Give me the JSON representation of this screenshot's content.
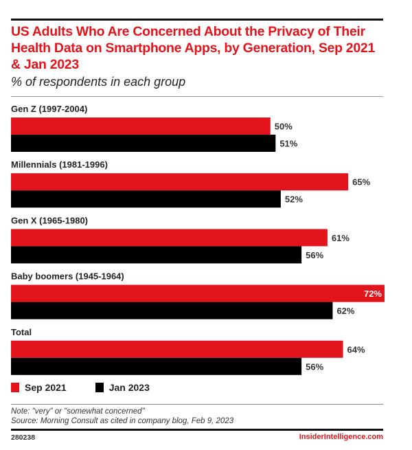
{
  "header": {
    "title": "US Adults Who Are Concerned About the Privacy of Their Health Data on Smartphone Apps, by Generation, Sep 2021 & Jan 2023",
    "subtitle": "% of respondents in each group"
  },
  "colors": {
    "sep_2021": "#e3141b",
    "jan_2023": "#000000",
    "title": "#e3141b"
  },
  "chart_data": {
    "type": "bar",
    "orientation": "horizontal",
    "title": "US Adults Who Are Concerned About the Privacy of Their Health Data on Smartphone Apps, by Generation, Sep 2021 & Jan 2023",
    "subtitle": "% of respondents in each group",
    "xlabel": "",
    "ylabel": "",
    "unit": "%",
    "xlim": [
      0,
      72
    ],
    "grid": false,
    "legend_position": "bottom-left",
    "categories": [
      "Gen Z (1997-2004)",
      "Millennials (1981-1996)",
      "Gen X (1965-1980)",
      "Baby boomers (1945-1964)",
      "Total"
    ],
    "series": [
      {
        "name": "Sep 2021",
        "color": "#e3141b",
        "values": [
          50,
          65,
          61,
          72,
          64
        ]
      },
      {
        "name": "Jan 2023",
        "color": "#000000",
        "values": [
          51,
          52,
          56,
          62,
          56
        ]
      }
    ]
  },
  "legend": {
    "items": [
      {
        "label": "Sep 2021"
      },
      {
        "label": "Jan 2023"
      }
    ]
  },
  "footer": {
    "note": "Note: \"very\" or \"somewhat concerned\"",
    "source": "Source: Morning Consult as cited in company blog, Feb 9, 2023",
    "chart_id": "280238",
    "brand": "InsiderIntelligence.com"
  }
}
